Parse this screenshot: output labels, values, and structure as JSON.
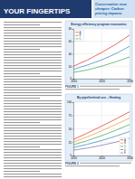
{
  "document": {
    "title": "YOUR FINGERTIPS",
    "sidebar": "Conservation now cheaper: Carbon pricing impacts",
    "captions": [
      "FIGURE 1",
      "FIGURE 2"
    ]
  },
  "chart_data": [
    {
      "type": "line",
      "title": "Energy efficiency program economics",
      "x": [
        2010,
        2015,
        2020,
        2025,
        2030
      ],
      "xlim": [
        2010,
        2030
      ],
      "xticks": [
        2010,
        2020,
        2030
      ],
      "ylim": [
        0,
        80
      ],
      "yticks": [
        0,
        20,
        40,
        60,
        80
      ],
      "grid": true,
      "legend": "top-left",
      "series": [
        {
          "name": "A",
          "color": "#d7301f",
          "values": [
            20,
            30,
            42,
            55,
            70
          ]
        },
        {
          "name": "B",
          "color": "#2c7fb8",
          "values": [
            15,
            22,
            30,
            40,
            52
          ]
        },
        {
          "name": "C",
          "color": "#31a354",
          "values": [
            10,
            14,
            20,
            27,
            35
          ]
        }
      ]
    },
    {
      "type": "line",
      "title": "By pipeline/end use – Heating",
      "x": [
        2010,
        2015,
        2020,
        2025,
        2030
      ],
      "xlim": [
        2010,
        2030
      ],
      "xticks": [
        2010,
        2020,
        2030
      ],
      "ylim": [
        0,
        100
      ],
      "yticks": [
        0,
        25,
        50,
        75,
        100
      ],
      "grid": true,
      "legend": "bottom-right",
      "series": [
        {
          "name": "A",
          "color": "#d7301f",
          "values": [
            30,
            42,
            55,
            68,
            82
          ]
        },
        {
          "name": "B",
          "color": "#f28e2b",
          "values": [
            25,
            35,
            46,
            58,
            70
          ]
        },
        {
          "name": "C",
          "color": "#31a354",
          "values": [
            20,
            28,
            37,
            47,
            58
          ]
        },
        {
          "name": "D",
          "color": "#2c7fb8",
          "values": [
            15,
            21,
            28,
            36,
            45
          ]
        },
        {
          "name": "E",
          "color": "#756bb1",
          "values": [
            10,
            14,
            19,
            25,
            32
          ]
        }
      ]
    }
  ]
}
